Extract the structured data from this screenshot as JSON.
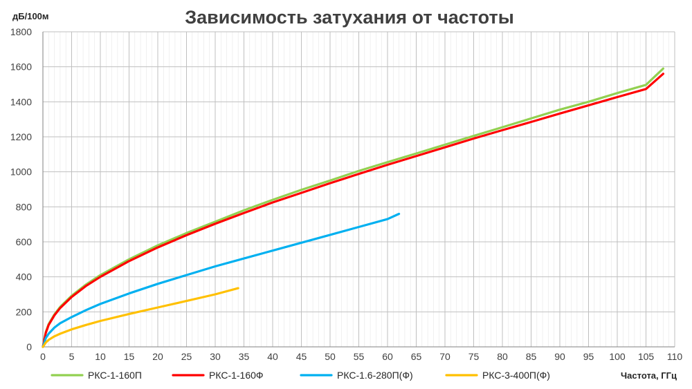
{
  "chart_data": {
    "type": "line",
    "title": "Зависимость затухания от частоты",
    "ylabel": "дБ/100м",
    "xlabel": "Частота, ГГц",
    "xlim": [
      0,
      110
    ],
    "ylim": [
      0,
      1800
    ],
    "x_ticks": [
      0,
      5,
      10,
      15,
      20,
      25,
      30,
      35,
      40,
      45,
      50,
      55,
      60,
      65,
      70,
      75,
      80,
      85,
      90,
      95,
      100,
      105,
      110
    ],
    "y_ticks": [
      0,
      200,
      400,
      600,
      800,
      1000,
      1200,
      1400,
      1600,
      1800
    ],
    "grid": true,
    "legend_position": "bottom",
    "series": [
      {
        "name": "РКС-1-160П",
        "color": "#92D050",
        "x": [
          0,
          0.5,
          1,
          2,
          3,
          5,
          7.5,
          10,
          15,
          20,
          25,
          30,
          35,
          40,
          45,
          50,
          55,
          60,
          65,
          70,
          75,
          80,
          85,
          90,
          95,
          100,
          105,
          108
        ],
        "y": [
          0,
          85,
          130,
          185,
          228,
          292,
          356,
          410,
          500,
          580,
          650,
          715,
          780,
          840,
          897,
          950,
          1005,
          1055,
          1105,
          1155,
          1205,
          1255,
          1305,
          1355,
          1400,
          1450,
          1497,
          1590
        ]
      },
      {
        "name": "РКС-1-160Ф",
        "color": "#FF0000",
        "x": [
          0,
          0.5,
          1,
          2,
          3,
          5,
          7.5,
          10,
          15,
          20,
          25,
          30,
          35,
          40,
          45,
          50,
          55,
          60,
          65,
          70,
          75,
          80,
          85,
          90,
          95,
          100,
          105,
          108
        ],
        "y": [
          0,
          80,
          125,
          180,
          222,
          285,
          348,
          400,
          490,
          568,
          638,
          703,
          765,
          825,
          880,
          935,
          988,
          1040,
          1090,
          1140,
          1190,
          1238,
          1285,
          1333,
          1380,
          1427,
          1473,
          1560
        ]
      },
      {
        "name": "РКС-1.6-280П(Ф)",
        "color": "#00B0F0",
        "x": [
          0,
          0.5,
          1,
          2,
          3,
          5,
          7.5,
          10,
          15,
          20,
          25,
          30,
          35,
          40,
          45,
          50,
          55,
          60,
          62
        ],
        "y": [
          0,
          50,
          75,
          110,
          135,
          170,
          210,
          245,
          305,
          360,
          410,
          460,
          505,
          550,
          595,
          640,
          685,
          730,
          760
        ]
      },
      {
        "name": "РКС-3-400П(Ф)",
        "color": "#FFC000",
        "x": [
          0,
          0.5,
          1,
          2,
          3,
          5,
          7.5,
          10,
          15,
          20,
          25,
          30,
          34
        ],
        "y": [
          0,
          25,
          40,
          60,
          75,
          100,
          125,
          148,
          188,
          225,
          262,
          300,
          335
        ]
      }
    ]
  }
}
